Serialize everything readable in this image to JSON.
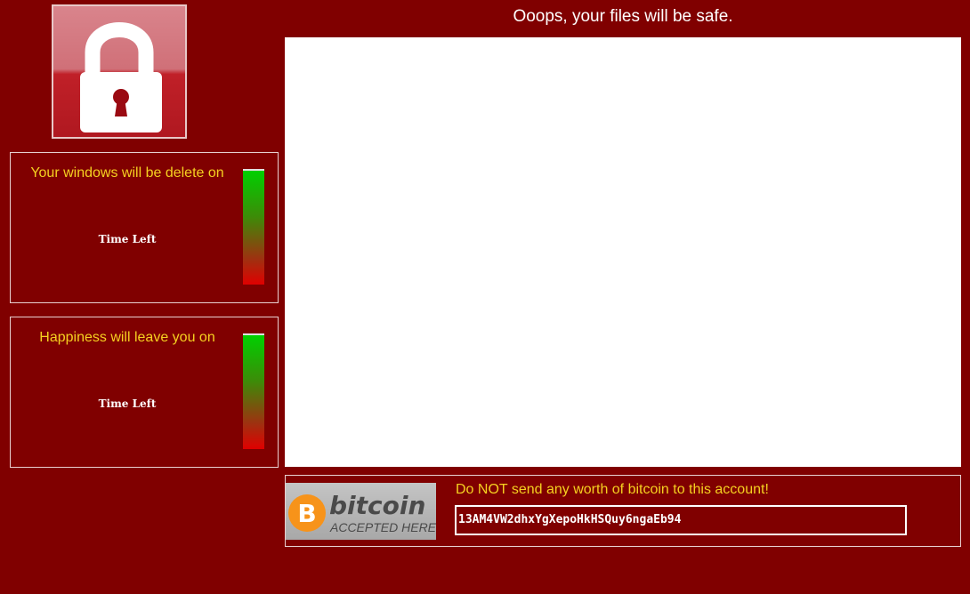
{
  "header": {
    "title": "Ooops, your files will be safe."
  },
  "panels": [
    {
      "title": "Your windows will be delete on",
      "time_label": "Time Left"
    },
    {
      "title": "Happiness will leave you on",
      "time_label": "Time Left"
    }
  ],
  "bitcoin": {
    "logo_word": "bitcoin",
    "logo_sub": "ACCEPTED HERE",
    "warning": "Do NOT send any worth of bitcoin to this account!",
    "address": "13AM4VW2dhxYgXepoHkHSQuy6ngaEb94"
  },
  "colors": {
    "background": "#800000",
    "accent_text": "#f5d020",
    "timer_top": "#00d000",
    "timer_bottom": "#e00000"
  },
  "icons": {
    "lock": "padlock-icon",
    "bitcoin": "bitcoin-logo-icon"
  }
}
